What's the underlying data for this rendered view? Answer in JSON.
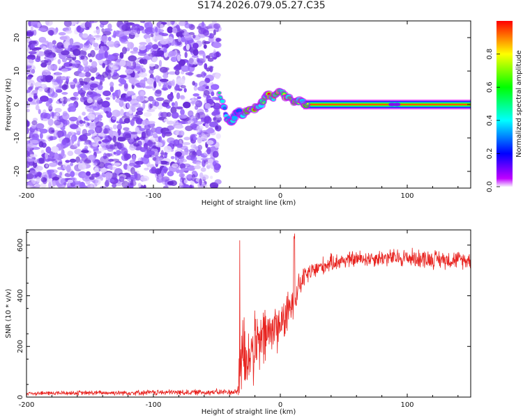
{
  "figure_title": "S174.2026.079.05.27.C35",
  "chart_data": [
    {
      "type": "heatmap",
      "title": "S174.2026.079.05.27.C35",
      "xlabel": "Height of straight line (km)",
      "ylabel": "Frequency (Hz)",
      "xlim": [
        -200,
        150
      ],
      "ylim": [
        -25,
        25
      ],
      "xticks": [
        -200,
        -100,
        0,
        100
      ],
      "yticks": [
        -20,
        -10,
        0,
        10,
        20
      ],
      "colorbar": {
        "label": "Normalized spectral amplitude",
        "ticks": [
          "0.0",
          "0.2",
          "0.4",
          "0.6",
          "0.8"
        ],
        "range": [
          0,
          1
        ]
      },
      "noise_region_x": [
        -200,
        -45
      ],
      "ridge": {
        "x": [
          -48,
          -45,
          -42,
          -38,
          -34,
          -30,
          -25,
          -20,
          -15,
          -10,
          -5,
          0,
          5,
          10,
          15,
          20,
          150
        ],
        "freq": [
          3,
          0,
          -4,
          -5,
          -2,
          -3,
          -2,
          -1,
          0,
          3,
          2,
          4,
          2,
          1,
          1,
          0,
          0
        ]
      }
    },
    {
      "type": "line",
      "xlabel": "Height of straight line (km)",
      "ylabel": "SNR (10 * v/v)",
      "xlim": [
        -200,
        150
      ],
      "ylim": [
        0,
        660
      ],
      "xticks": [
        -200,
        -100,
        0,
        100
      ],
      "yticks": [
        0,
        200,
        400,
        600
      ],
      "series": [
        {
          "name": "SNR",
          "color": "#e8231f",
          "envelope": {
            "x": [
              -200,
              -34,
              -32,
              -30,
              -27,
              -25,
              -20,
              -15,
              -10,
              -5,
              0,
              5,
              10,
              15,
              20,
              30,
              40,
              50,
              60,
              80,
              100,
              120,
              150
            ],
            "mean": [
              15,
              20,
              100,
              200,
              150,
              170,
              190,
              220,
              250,
              270,
              290,
              320,
              380,
              440,
              480,
              510,
              530,
              540,
              545,
              550,
              550,
              545,
              540
            ],
            "spread": [
              10,
              15,
              200,
              220,
              180,
              170,
              160,
              150,
              140,
              130,
              110,
              100,
              80,
              60,
              50,
              45,
              40,
              40,
              40,
              40,
              45,
              45,
              40
            ]
          }
        }
      ]
    }
  ],
  "colors": {
    "axis": "#000000",
    "line": "#e8231f"
  }
}
